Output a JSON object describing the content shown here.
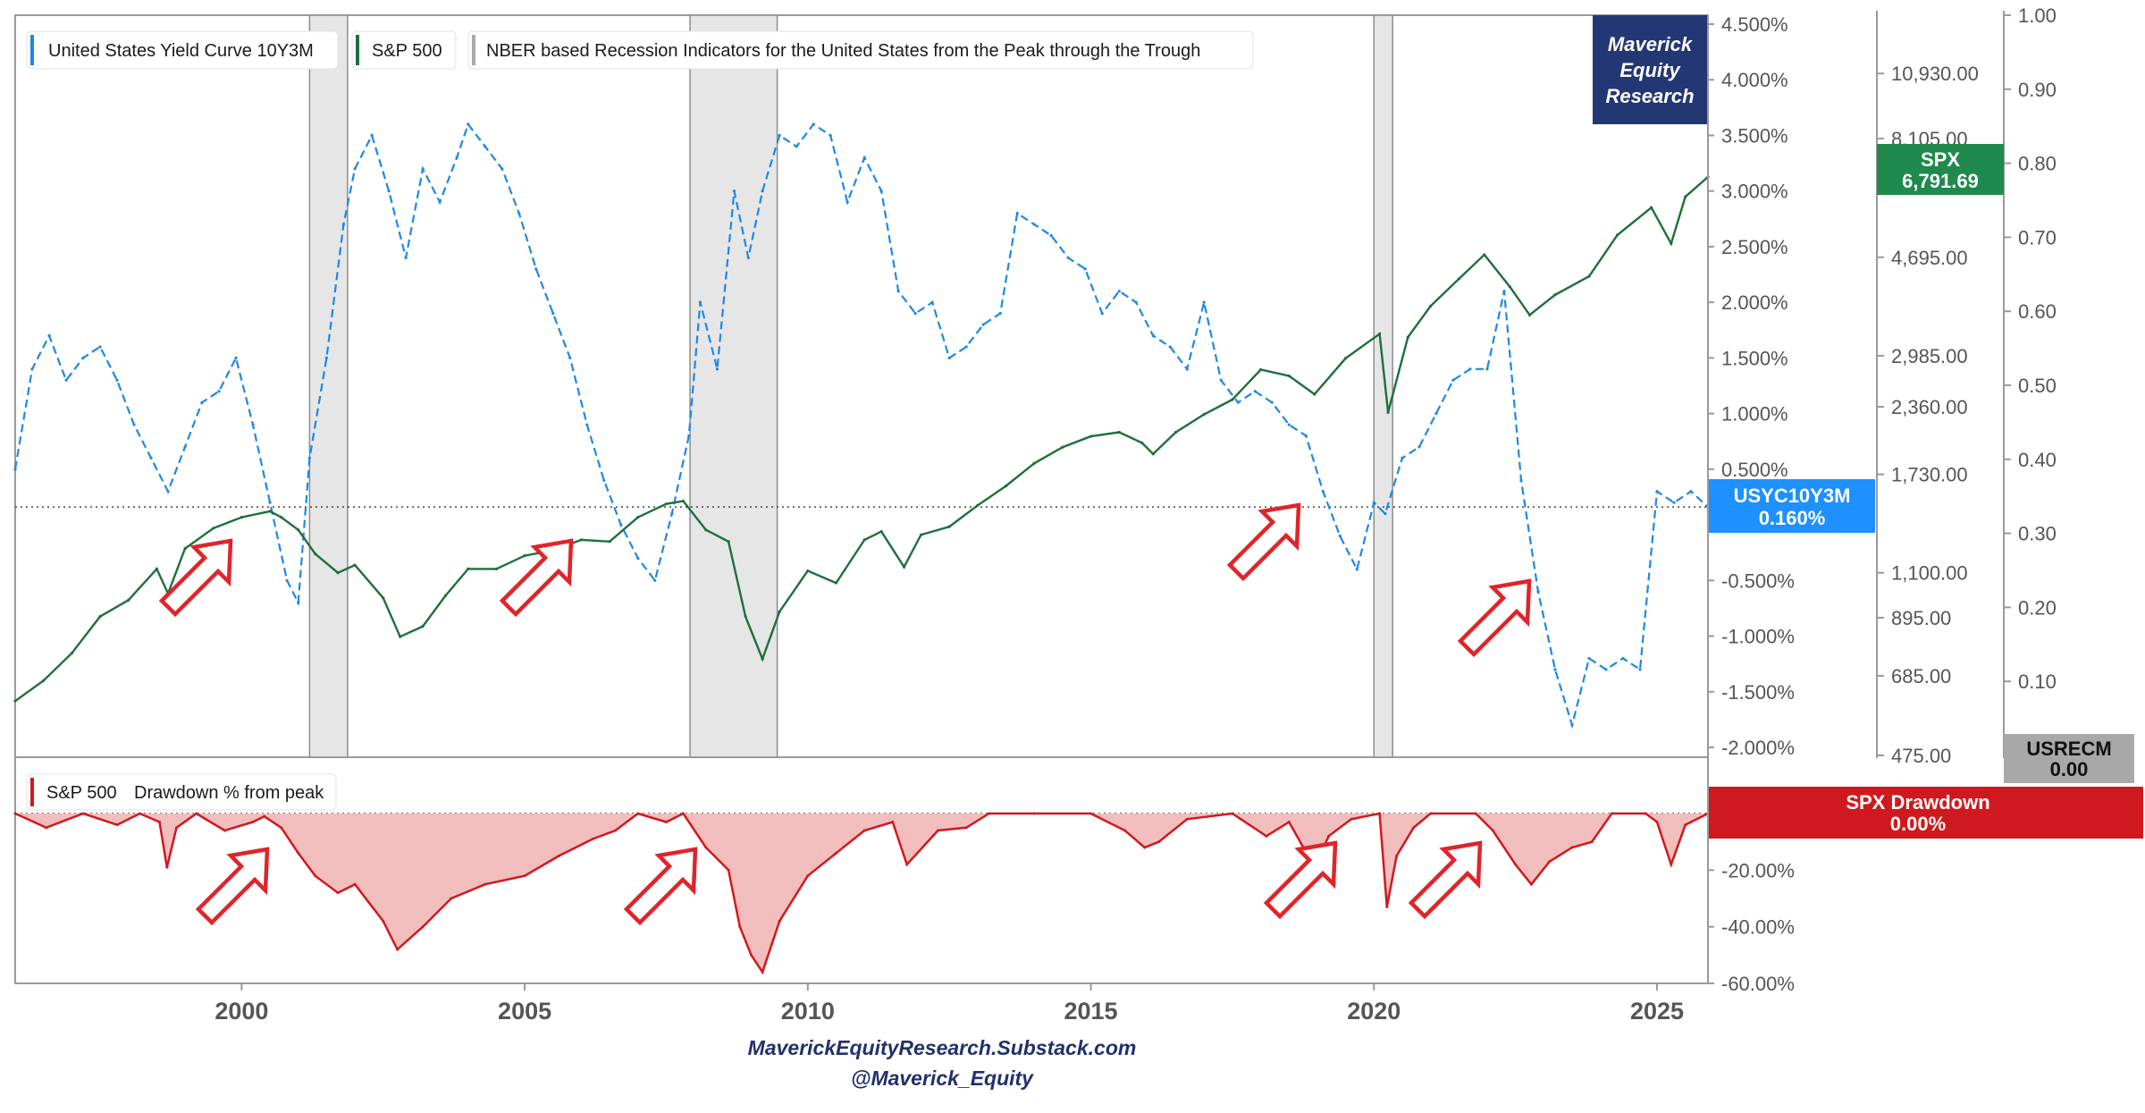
{
  "branding": {
    "logo_lines": [
      "Maverick",
      "Equity",
      "Research"
    ],
    "footer_site": "MaverickEquityResearch.Substack.com",
    "footer_handle": "@Maverick_Equity",
    "logo_bg": "#233774",
    "footer_color": "#23306b"
  },
  "colors": {
    "yield": "#1e88e5",
    "spx": "#1f6f3a",
    "recession_fill": "#e6e6e6",
    "drawdown_line": "#d0191e",
    "drawdown_fill": "#f2bdbd",
    "arrow": "#e0242a",
    "usrecm_badge": "#a8a8a8",
    "spx_badge": "#1f8a4c",
    "yield_badge": "#1e90ff"
  },
  "legend": {
    "items": [
      {
        "label": "United States Yield Curve 10Y3M",
        "color": "#1e88e5"
      },
      {
        "label": "S&P 500",
        "color": "#1f6f3a"
      },
      {
        "label": "NBER based Recession Indicators for the United States from the Peak through the Trough",
        "color": "#a8a8a8"
      }
    ]
  },
  "drawdown_legend": {
    "series": "S&P 500",
    "label": "Drawdown % from peak"
  },
  "badges": {
    "spx_title": "SPX",
    "spx_value": "6,791.69",
    "yield_title": "USYC10Y3M",
    "yield_value": "0.160%",
    "usrecm_title": "USRECM",
    "usrecm_value": "0.00",
    "drawdown_title": "SPX Drawdown",
    "drawdown_value": "0.00%"
  },
  "chart_data": [
    {
      "type": "line",
      "panel": "main",
      "x_ticks": [
        "2000",
        "2005",
        "2010",
        "2015",
        "2020",
        "2025"
      ],
      "xlim": [
        1996.0,
        2025.9
      ],
      "axes": {
        "yield": {
          "unit": "%",
          "ylim": [
            -2.0,
            4.5
          ],
          "ticks": [
            "4.500%",
            "4.000%",
            "3.500%",
            "3.000%",
            "2.500%",
            "2.000%",
            "1.500%",
            "1.000%",
            "0.500%",
            "0",
            "-0.500%",
            "-1.000%",
            "-1.500%",
            "-2.000%"
          ]
        },
        "spx": {
          "scale": "log",
          "ylim": [
            475,
            14000
          ],
          "ticks": [
            "10,930.00",
            "8,105.00",
            "4,695.00",
            "2,985.00",
            "2,360.00",
            "1,730.00",
            "1,100.00",
            "895.00",
            "685.00",
            "475.00"
          ]
        },
        "usrecm": {
          "ylim": [
            0.0,
            1.0
          ],
          "ticks": [
            "1.00",
            "0.90",
            "0.80",
            "0.70",
            "0.60",
            "0.50",
            "0.40",
            "0.30",
            "0.20",
            "0.10"
          ]
        }
      },
      "reference_line": {
        "axis": "yield",
        "value": 0.16,
        "style": "dotted"
      },
      "recessions": [
        {
          "start": 2001.2,
          "end": 2001.87
        },
        {
          "start": 2007.92,
          "end": 2009.46
        },
        {
          "start": 2020.0,
          "end": 2020.33
        }
      ],
      "series": [
        {
          "name": "United States Yield Curve 10Y3M",
          "axis": "yield",
          "style": "dashed",
          "x": [
            1996.0,
            1996.3,
            1996.6,
            1996.9,
            1997.2,
            1997.5,
            1997.8,
            1998.1,
            1998.4,
            1998.7,
            1999.0,
            1999.3,
            1999.6,
            1999.9,
            2000.2,
            2000.5,
            2000.8,
            2001.0,
            2001.2,
            2001.5,
            2001.8,
            2002.0,
            2002.3,
            2002.6,
            2002.9,
            2003.2,
            2003.5,
            2003.8,
            2004.0,
            2004.3,
            2004.6,
            2004.9,
            2005.2,
            2005.5,
            2005.8,
            2006.1,
            2006.4,
            2006.7,
            2007.0,
            2007.3,
            2007.6,
            2007.9,
            2008.1,
            2008.4,
            2008.7,
            2008.95,
            2009.2,
            2009.5,
            2009.8,
            2010.1,
            2010.4,
            2010.7,
            2011.0,
            2011.3,
            2011.6,
            2011.9,
            2012.2,
            2012.5,
            2012.8,
            2013.1,
            2013.4,
            2013.7,
            2014.0,
            2014.3,
            2014.6,
            2014.9,
            2015.2,
            2015.5,
            2015.8,
            2016.1,
            2016.4,
            2016.7,
            2017.0,
            2017.3,
            2017.6,
            2017.9,
            2018.2,
            2018.5,
            2018.8,
            2019.1,
            2019.4,
            2019.7,
            2020.0,
            2020.2,
            2020.5,
            2020.8,
            2021.1,
            2021.4,
            2021.7,
            2022.0,
            2022.3,
            2022.6,
            2022.9,
            2023.2,
            2023.5,
            2023.8,
            2024.1,
            2024.4,
            2024.7,
            2025.0,
            2025.3,
            2025.6,
            2025.9
          ],
          "values": [
            0.5,
            1.4,
            1.7,
            1.3,
            1.5,
            1.6,
            1.3,
            0.9,
            0.6,
            0.3,
            0.7,
            1.1,
            1.2,
            1.5,
            0.9,
            0.2,
            -0.5,
            -0.7,
            0.6,
            1.5,
            2.7,
            3.2,
            3.5,
            3.0,
            2.4,
            3.2,
            2.9,
            3.3,
            3.6,
            3.4,
            3.2,
            2.8,
            2.3,
            1.9,
            1.5,
            0.9,
            0.4,
            0.0,
            -0.3,
            -0.5,
            0.1,
            0.8,
            2.0,
            1.4,
            3.0,
            2.4,
            3.0,
            3.5,
            3.4,
            3.6,
            3.5,
            2.9,
            3.3,
            3.0,
            2.1,
            1.9,
            2.0,
            1.5,
            1.6,
            1.8,
            1.9,
            2.8,
            2.7,
            2.6,
            2.4,
            2.3,
            1.9,
            2.1,
            2.0,
            1.7,
            1.6,
            1.4,
            2.0,
            1.3,
            1.1,
            1.2,
            1.1,
            0.9,
            0.8,
            0.3,
            -0.1,
            -0.4,
            0.2,
            0.1,
            0.6,
            0.7,
            1.0,
            1.3,
            1.4,
            1.4,
            2.1,
            0.4,
            -0.6,
            -1.3,
            -1.8,
            -1.2,
            -1.3,
            -1.2,
            -1.3,
            0.3,
            0.2,
            0.3,
            0.16
          ]
        },
        {
          "name": "S&P 500",
          "axis": "spx",
          "style": "solid",
          "x": [
            1996.0,
            1996.5,
            1997.0,
            1997.5,
            1998.0,
            1998.5,
            1998.7,
            1999.0,
            1999.5,
            2000.0,
            2000.5,
            2000.7,
            2001.0,
            2001.3,
            2001.7,
            2002.0,
            2002.5,
            2002.8,
            2003.2,
            2003.6,
            2004.0,
            2004.5,
            2005.0,
            2005.5,
            2006.0,
            2006.5,
            2007.0,
            2007.5,
            2007.8,
            2008.2,
            2008.6,
            2008.9,
            2009.2,
            2009.5,
            2010.0,
            2010.5,
            2011.0,
            2011.3,
            2011.7,
            2012.0,
            2012.5,
            2013.0,
            2013.5,
            2014.0,
            2014.5,
            2015.0,
            2015.5,
            2015.9,
            2016.1,
            2016.5,
            2017.0,
            2017.5,
            2018.0,
            2018.5,
            2018.95,
            2019.5,
            2020.1,
            2020.25,
            2020.6,
            2021.0,
            2021.5,
            2021.95,
            2022.4,
            2022.75,
            2023.2,
            2023.8,
            2024.3,
            2024.9,
            2025.25,
            2025.5,
            2025.9
          ],
          "values": [
            610,
            670,
            760,
            900,
            970,
            1120,
            1000,
            1230,
            1350,
            1420,
            1460,
            1420,
            1340,
            1200,
            1100,
            1140,
            980,
            820,
            860,
            990,
            1120,
            1120,
            1190,
            1220,
            1280,
            1270,
            1420,
            1510,
            1530,
            1340,
            1270,
            900,
            740,
            920,
            1110,
            1050,
            1280,
            1330,
            1130,
            1310,
            1360,
            1500,
            1640,
            1820,
            1960,
            2060,
            2100,
            2000,
            1900,
            2100,
            2280,
            2440,
            2800,
            2720,
            2500,
            2950,
            3300,
            2300,
            3250,
            3750,
            4250,
            4750,
            4100,
            3600,
            3950,
            4300,
            5200,
            5900,
            5000,
            6200,
            6791.69
          ]
        }
      ]
    },
    {
      "type": "area",
      "panel": "drawdown",
      "name": "SPX Drawdown",
      "unit": "%",
      "ylim": [
        -60,
        3
      ],
      "ticks": [
        "0.00%",
        "-20.00%",
        "-40.00%",
        "-60.00%"
      ],
      "x": [
        1996.0,
        1996.55,
        1997.2,
        1997.8,
        1998.2,
        1998.55,
        1998.68,
        1998.85,
        1999.2,
        1999.7,
        2000.2,
        2000.4,
        2000.7,
        2001.0,
        2001.3,
        2001.7,
        2002.0,
        2002.5,
        2002.75,
        2003.2,
        2003.7,
        2004.3,
        2005.0,
        2005.6,
        2006.2,
        2006.6,
        2007.0,
        2007.5,
        2007.8,
        2008.2,
        2008.6,
        2008.8,
        2009.0,
        2009.2,
        2009.5,
        2010.0,
        2010.5,
        2011.0,
        2011.5,
        2011.75,
        2012.3,
        2012.8,
        2013.2,
        2014.0,
        2015.0,
        2015.6,
        2015.95,
        2016.2,
        2016.7,
        2017.5,
        2018.1,
        2018.5,
        2018.95,
        2019.2,
        2019.6,
        2020.1,
        2020.23,
        2020.4,
        2020.7,
        2021.0,
        2021.8,
        2022.1,
        2022.5,
        2022.78,
        2023.1,
        2023.5,
        2023.85,
        2024.2,
        2024.8,
        2025.0,
        2025.25,
        2025.5,
        2025.9
      ],
      "values": [
        0,
        -5,
        0,
        -4,
        0,
        -3,
        -19,
        -5,
        0,
        -6,
        -3,
        -1,
        -5,
        -14,
        -22,
        -28,
        -25,
        -38,
        -48,
        -40,
        -30,
        -25,
        -22,
        -15,
        -9,
        -6,
        0,
        -3,
        0,
        -12,
        -20,
        -40,
        -50,
        -56,
        -38,
        -22,
        -14,
        -6,
        -3,
        -18,
        -6,
        -5,
        0,
        0,
        0,
        -6,
        -12,
        -10,
        -2,
        0,
        -8,
        -3,
        -19,
        -8,
        -2,
        0,
        -33,
        -15,
        -5,
        0,
        0,
        -6,
        -18,
        -25,
        -17,
        -12,
        -10,
        0,
        0,
        -3,
        -18,
        -4,
        0
      ]
    }
  ]
}
